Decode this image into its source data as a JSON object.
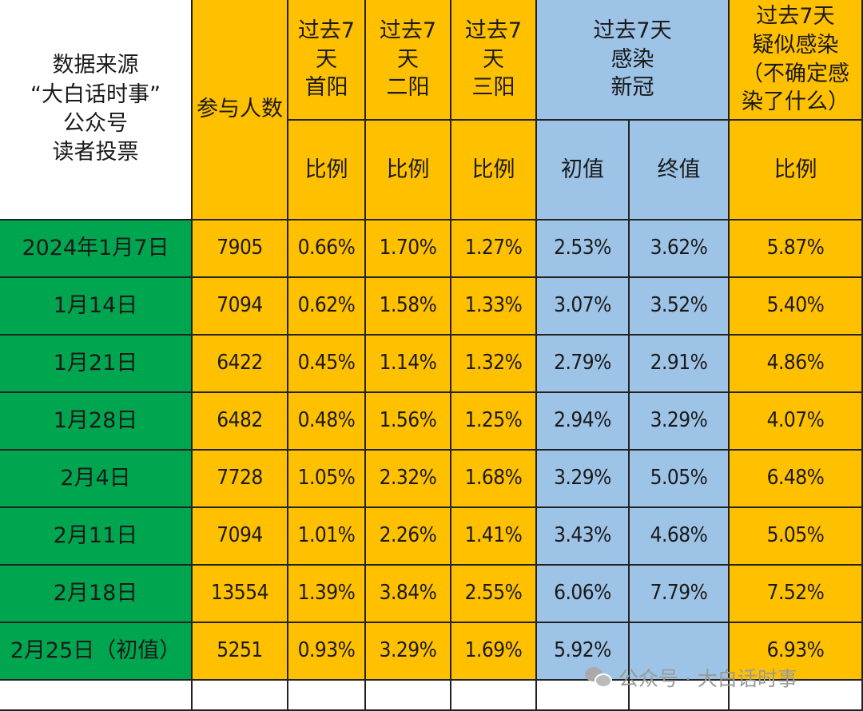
{
  "header": {
    "source": [
      "数据来源",
      "“大白话时事”",
      "公众号",
      "读者投票"
    ],
    "participants": "参与人数",
    "first_positive": [
      "过去7",
      "天",
      "首阳"
    ],
    "second_positive": [
      "过去7",
      "天",
      "二阳"
    ],
    "third_positive": [
      "过去7",
      "天",
      "三阳"
    ],
    "infected_covid": [
      "过去7天",
      "感染",
      "新冠"
    ],
    "suspected": [
      "过去7天",
      "疑似感染",
      "（不确定感",
      "染了什么）"
    ],
    "sub": {
      "ratio1": "比例",
      "ratio2": "比例",
      "ratio3": "比例",
      "initial": "初值",
      "final": "终值",
      "ratio4": "比例"
    }
  },
  "rows": [
    {
      "date": "2024年1月7日",
      "participants": "7905",
      "first": "0.66%",
      "second": "1.70%",
      "third": "1.27%",
      "initial": "2.53%",
      "final": "3.62%",
      "suspected": "5.87%"
    },
    {
      "date": "1月14日",
      "participants": "7094",
      "first": "0.62%",
      "second": "1.58%",
      "third": "1.33%",
      "initial": "3.07%",
      "final": "3.52%",
      "suspected": "5.40%"
    },
    {
      "date": "1月21日",
      "participants": "6422",
      "first": "0.45%",
      "second": "1.14%",
      "third": "1.32%",
      "initial": "2.79%",
      "final": "2.91%",
      "suspected": "4.86%"
    },
    {
      "date": "1月28日",
      "participants": "6482",
      "first": "0.48%",
      "second": "1.56%",
      "third": "1.25%",
      "initial": "2.94%",
      "final": "3.29%",
      "suspected": "4.07%"
    },
    {
      "date": "2月4日",
      "participants": "7728",
      "first": "1.05%",
      "second": "2.32%",
      "third": "1.68%",
      "initial": "3.29%",
      "final": "5.05%",
      "suspected": "6.48%"
    },
    {
      "date": "2月11日",
      "participants": "7094",
      "first": "1.01%",
      "second": "2.26%",
      "third": "1.41%",
      "initial": "3.43%",
      "final": "4.68%",
      "suspected": "5.05%"
    },
    {
      "date": "2月18日",
      "participants": "13554",
      "first": "1.39%",
      "second": "3.84%",
      "third": "2.55%",
      "initial": "6.06%",
      "final": "7.79%",
      "suspected": "7.52%"
    },
    {
      "date": "2月25日（初值）",
      "participants": "5251",
      "first": "0.93%",
      "second": "3.29%",
      "third": "1.69%",
      "initial": "5.92%",
      "final": "",
      "suspected": "6.93%"
    }
  ],
  "watermark": "公众号 · 大白话时事",
  "watermark_icon": "wechat-icon",
  "colors": {
    "yellow": "#FFC000",
    "blue": "#9DC3E6",
    "green": "#00A550"
  }
}
